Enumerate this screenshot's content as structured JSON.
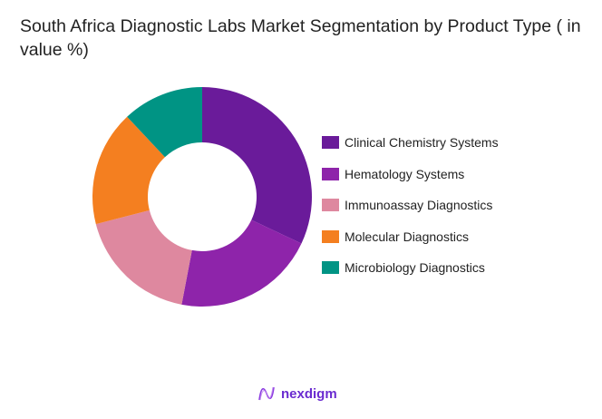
{
  "title": "South Africa Diagnostic Labs Market Segmentation by Product Type ( in value %)",
  "brand": {
    "name": "nexdigm",
    "icon": "nexdigm-logo-icon"
  },
  "chart_data": {
    "type": "pie",
    "donut": true,
    "title": "South Africa Diagnostic Labs Market Segmentation by Product Type ( in value %)",
    "categories": [
      "Clinical Chemistry Systems",
      "Hematology Systems",
      "Immunoassay Diagnostics",
      "Molecular Diagnostics",
      "Microbiology Diagnostics"
    ],
    "values": [
      32,
      21,
      18,
      17,
      12
    ],
    "colors": [
      "#6a1b9a",
      "#8e24aa",
      "#de889f",
      "#f47f20",
      "#009484"
    ],
    "legend_position": "right",
    "start_angle": "12 o'clock, clockwise"
  },
  "legend": [
    {
      "label": "Clinical Chemistry Systems",
      "color": "#6a1b9a"
    },
    {
      "label": "Hematology Systems",
      "color": "#8e24aa"
    },
    {
      "label": "Immunoassay Diagnostics",
      "color": "#de889f"
    },
    {
      "label": "Molecular Diagnostics",
      "color": "#f47f20"
    },
    {
      "label": "Microbiology Diagnostics",
      "color": "#009484"
    }
  ]
}
